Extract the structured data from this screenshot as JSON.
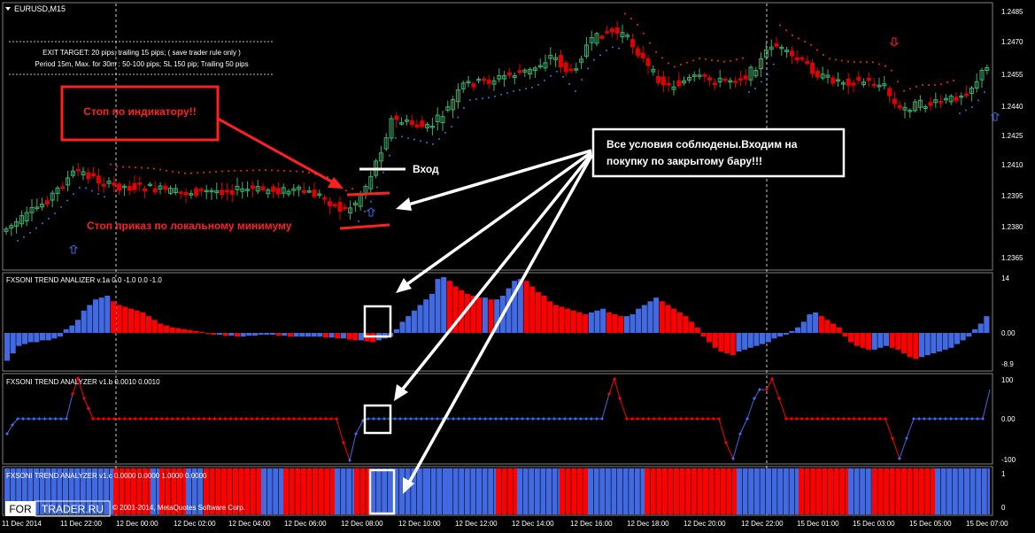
{
  "symbol_label": "EURUSD,M15",
  "info_box": {
    "line1": "EXIT TARGET: 20 pips; trailing 15 pips; ( save trader rule only )",
    "line2": "Period 15m, Max. for 30m  :  50-100 pips; SL 150 pip; Trailing 50 pips"
  },
  "annotations": {
    "stop_indicator": "Стоп по индикатору!!",
    "stop_order": "Стоп приказ по локальному минимуму",
    "entry": "Вход",
    "conditions": "Все условия соблюдены.Входим на покупку по закрытому бару!!!"
  },
  "main_price_axis": [
    "1.2485",
    "1.2470",
    "1.2455",
    "1.2440",
    "1.2425",
    "1.2410",
    "1.2395",
    "1.2380",
    "1.2365"
  ],
  "panels": {
    "analyzer_a": {
      "label": "FXSONI TREND ANALIZER v.1a 0.0 -1.0 0.0 -1.0",
      "axis": [
        "14",
        "0.00",
        "-8.9"
      ]
    },
    "analyzer_b": {
      "label": "FXSONI TREND ANALYZER v1.b 0.0010 0.0010",
      "axis": [
        "100",
        "0.00",
        "-100"
      ]
    },
    "analyzer_c": {
      "label": "FXSONI TREND ANALYZER v1.c 0.0000 0.0000 1.0000 0.0000",
      "axis": [
        "1",
        "0"
      ]
    }
  },
  "watermark": {
    "brand_left": "FOR",
    "brand_right": "TRADER.RU",
    "copyright": "© 2001-2014, MetaQuotes Software Corp."
  },
  "time_axis": [
    "11 Dec 2014",
    "11 Dec 22:00",
    "12 Dec 00:00",
    "12 Dec 02:00",
    "12 Dec 04:00",
    "12 Dec 06:00",
    "12 Dec 08:00",
    "12 Dec 10:00",
    "12 Dec 12:00",
    "12 Dec 14:00",
    "12 Dec 16:00",
    "12 Dec 18:00",
    "12 Dec 20:00",
    "12 Dec 22:00",
    "15 Dec 01:00",
    "15 Dec 03:00",
    "15 Dec 05:00",
    "15 Dec 07:00"
  ],
  "colors": {
    "background": "#000000",
    "bull": "#3cb371",
    "bear": "#e00000",
    "blue_bar": "#4169e1",
    "red_bar": "#ff0000",
    "grid": "#606060",
    "annotation_red": "#ff2020"
  },
  "icons": [
    "triangle-down-icon",
    "up-arrow-icon",
    "down-arrow-icon"
  ]
}
